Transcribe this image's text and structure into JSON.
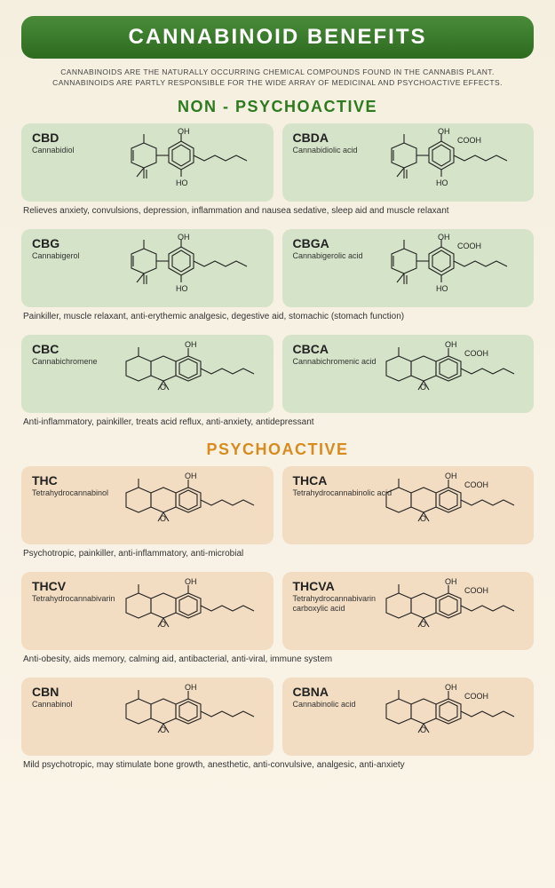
{
  "title": "CANNABINOID BENEFITS",
  "intro_line1": "CANNABINOIDS ARE THE NATURALLY OCCURRING CHEMICAL COMPOUNDS FOUND IN THE CANNABIS PLANT.",
  "intro_line2": "CANNABINOIDS ARE PARTLY RESPONSIBLE FOR THE WIDE ARRAY OF MEDICINAL AND PSYCHOACTIVE EFFECTS.",
  "sections": {
    "nonpsy": {
      "header": "NON - PSYCHOACTIVE",
      "color": "#2d7a1f",
      "card_bg": "#d5e3c8"
    },
    "psy": {
      "header": "PSYCHOACTIVE",
      "color": "#d88b1f",
      "card_bg": "#f2ddc2"
    }
  },
  "rows": [
    {
      "section": "nonpsy",
      "left": {
        "abbr": "CBD",
        "name": "Cannabidiol"
      },
      "right": {
        "abbr": "CBDA",
        "name": "Cannabidiolic acid"
      },
      "benefit": "Relieves anxiety, convulsions, depression, inflammation and nausea sedative, sleep aid and muscle relaxant"
    },
    {
      "section": "nonpsy",
      "left": {
        "abbr": "CBG",
        "name": "Cannabigerol"
      },
      "right": {
        "abbr": "CBGA",
        "name": "Cannabigerolic acid"
      },
      "benefit": "Painkiller, muscle relaxant, anti-erythemic analgesic, degestive aid, stomachic (stomach function)"
    },
    {
      "section": "nonpsy",
      "left": {
        "abbr": "CBC",
        "name": "Cannabichromene"
      },
      "right": {
        "abbr": "CBCA",
        "name": "Cannabichromenic acid"
      },
      "benefit": "Anti-inflammatory, painkiller, treats acid reflux, anti-anxiety, antidepressant"
    },
    {
      "section": "psy",
      "left": {
        "abbr": "THC",
        "name": "Tetrahydrocannabinol"
      },
      "right": {
        "abbr": "THCA",
        "name": "Tetrahydrocannabinolic acid"
      },
      "benefit": "Psychotropic, painkiller, anti-inflammatory, anti-microbial"
    },
    {
      "section": "psy",
      "left": {
        "abbr": "THCV",
        "name": "Tetrahydrocannabivarin"
      },
      "right": {
        "abbr": "THCVA",
        "name": "Tetrahydrocannabivarin carboxylic acid"
      },
      "benefit": "Anti-obesity, aids memory, calming aid, antibacterial, anti-viral, immune system"
    },
    {
      "section": "psy",
      "left": {
        "abbr": "CBN",
        "name": "Cannabinol"
      },
      "right": {
        "abbr": "CBNA",
        "name": "Cannabinolic acid"
      },
      "benefit": "Mild psychotropic, may stimulate bone growth, anesthetic, anti-convulsive, analgesic, anti-anxiety"
    }
  ],
  "mol_labels": {
    "oh": "OH",
    "ho": "HO",
    "cooh": "COOH",
    "o": "O"
  },
  "style": {
    "title_bg_gradient": [
      "#4a8b3a",
      "#2d6b1f"
    ],
    "page_bg_gradient": [
      "#f5efe0",
      "#faf4e8"
    ],
    "title_fontsize": 24,
    "section_header_fontsize": 18,
    "abbr_fontsize": 14,
    "name_fontsize": 9,
    "benefit_fontsize": 10,
    "card_radius": 10,
    "mol_stroke": "#222",
    "mol_stroke_width": 1.1
  }
}
